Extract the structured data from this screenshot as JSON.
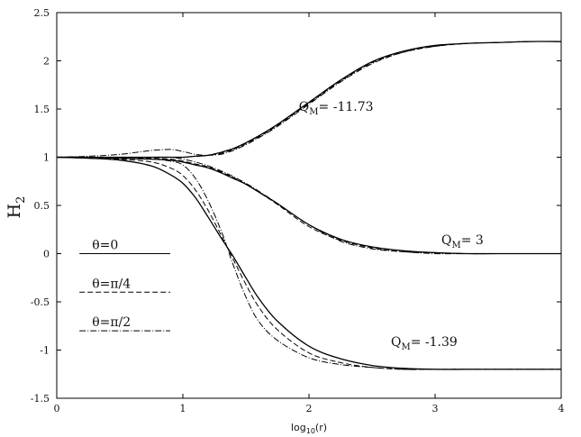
{
  "chart_data": {
    "type": "line",
    "title": "",
    "xlabel": {
      "base": "log",
      "sub": "10",
      "rest": "(r)"
    },
    "ylabel": {
      "base": "H",
      "sub": "2"
    },
    "xlim": [
      0,
      4
    ],
    "ylim": [
      -1.5,
      2.5
    ],
    "x_ticks": [
      0,
      1,
      2,
      3,
      4
    ],
    "y_ticks": [
      -1.5,
      -1,
      -0.5,
      0,
      0.5,
      1,
      1.5,
      2,
      2.5
    ],
    "x_tick_labels": [
      "0",
      "1",
      "2",
      "3",
      "4"
    ],
    "y_tick_labels": [
      "-1.5",
      "-1",
      "-0.5",
      "0",
      "0.5",
      "1",
      "1.5",
      "2",
      "2.5"
    ],
    "grid": false,
    "legend_position": "left",
    "legend": [
      {
        "label": "θ=0",
        "style": "solid"
      },
      {
        "label": "θ=π/4",
        "style": "dashed"
      },
      {
        "label": "θ=π/2",
        "style": "dashdot"
      }
    ],
    "annotations": [
      {
        "text": "Q",
        "sub": "M",
        "rest": "= -11.73",
        "x": 1.92,
        "y": 1.48
      },
      {
        "text": "Q",
        "sub": "M",
        "rest": "= 3",
        "x": 3.05,
        "y": 0.1
      },
      {
        "text": "Q",
        "sub": "M",
        "rest": "= -1.39",
        "x": 2.65,
        "y": -0.96
      }
    ],
    "x": [
      0,
      0.25,
      0.5,
      0.75,
      0.9,
      1.0,
      1.1,
      1.2,
      1.3,
      1.35,
      1.4,
      1.5,
      1.6,
      1.75,
      2.0,
      2.25,
      2.5,
      2.75,
      3.0,
      3.25,
      3.5,
      3.75,
      4.0
    ],
    "series": [
      {
        "group": "QM=-11.73",
        "style": "solid",
        "y": [
          1.0,
          1.0,
          1.0,
          1.0,
          1.0,
          1.0,
          1.01,
          1.02,
          1.05,
          1.07,
          1.09,
          1.15,
          1.22,
          1.34,
          1.57,
          1.8,
          1.99,
          2.1,
          2.16,
          2.18,
          2.19,
          2.2,
          2.2
        ]
      },
      {
        "group": "QM=-11.73",
        "style": "dashed",
        "y": [
          1.0,
          1.0,
          1.0,
          1.0,
          1.0,
          1.0,
          1.01,
          1.02,
          1.04,
          1.06,
          1.08,
          1.14,
          1.21,
          1.33,
          1.56,
          1.79,
          1.98,
          2.09,
          2.15,
          2.18,
          2.19,
          2.2,
          2.2
        ]
      },
      {
        "group": "QM=-11.73",
        "style": "dashdot",
        "y": [
          1.0,
          1.01,
          1.03,
          1.07,
          1.08,
          1.06,
          1.03,
          1.02,
          1.03,
          1.05,
          1.07,
          1.13,
          1.2,
          1.32,
          1.55,
          1.78,
          1.97,
          2.09,
          2.15,
          2.18,
          2.19,
          2.2,
          2.2
        ]
      },
      {
        "group": "QM=3",
        "style": "solid",
        "y": [
          1.0,
          1.0,
          0.99,
          0.98,
          0.97,
          0.95,
          0.92,
          0.89,
          0.84,
          0.81,
          0.78,
          0.72,
          0.64,
          0.52,
          0.3,
          0.15,
          0.07,
          0.03,
          0.01,
          0.0,
          0.0,
          0.0,
          0.0
        ]
      },
      {
        "group": "QM=3",
        "style": "dashed",
        "y": [
          1.0,
          1.0,
          0.99,
          0.99,
          0.98,
          0.96,
          0.93,
          0.9,
          0.85,
          0.82,
          0.79,
          0.72,
          0.64,
          0.51,
          0.28,
          0.14,
          0.06,
          0.02,
          0.01,
          0.0,
          0.0,
          0.0,
          0.0
        ]
      },
      {
        "group": "QM=3",
        "style": "dashdot",
        "y": [
          1.0,
          1.0,
          1.0,
          1.0,
          1.0,
          0.98,
          0.95,
          0.91,
          0.86,
          0.83,
          0.8,
          0.73,
          0.65,
          0.52,
          0.3,
          0.13,
          0.05,
          0.02,
          0.0,
          0.0,
          0.0,
          0.0,
          0.0
        ]
      },
      {
        "group": "QM=-1.39",
        "style": "solid",
        "y": [
          1.0,
          0.99,
          0.97,
          0.91,
          0.82,
          0.73,
          0.58,
          0.38,
          0.17,
          0.07,
          -0.03,
          -0.25,
          -0.46,
          -0.7,
          -0.96,
          -1.09,
          -1.16,
          -1.19,
          -1.2,
          -1.2,
          -1.2,
          -1.2,
          -1.2
        ]
      },
      {
        "group": "QM=-1.39",
        "style": "dashed",
        "y": [
          1.0,
          0.99,
          0.98,
          0.95,
          0.89,
          0.81,
          0.66,
          0.45,
          0.2,
          0.07,
          -0.06,
          -0.32,
          -0.55,
          -0.79,
          -1.03,
          -1.13,
          -1.18,
          -1.2,
          -1.2,
          -1.2,
          -1.2,
          -1.2,
          -1.2
        ]
      },
      {
        "group": "QM=-1.39",
        "style": "dashdot",
        "y": [
          1.0,
          1.0,
          0.99,
          0.98,
          0.96,
          0.92,
          0.78,
          0.55,
          0.25,
          0.07,
          -0.12,
          -0.45,
          -0.7,
          -0.9,
          -1.08,
          -1.15,
          -1.18,
          -1.2,
          -1.2,
          -1.2,
          -1.2,
          -1.2,
          -1.2
        ]
      }
    ]
  }
}
